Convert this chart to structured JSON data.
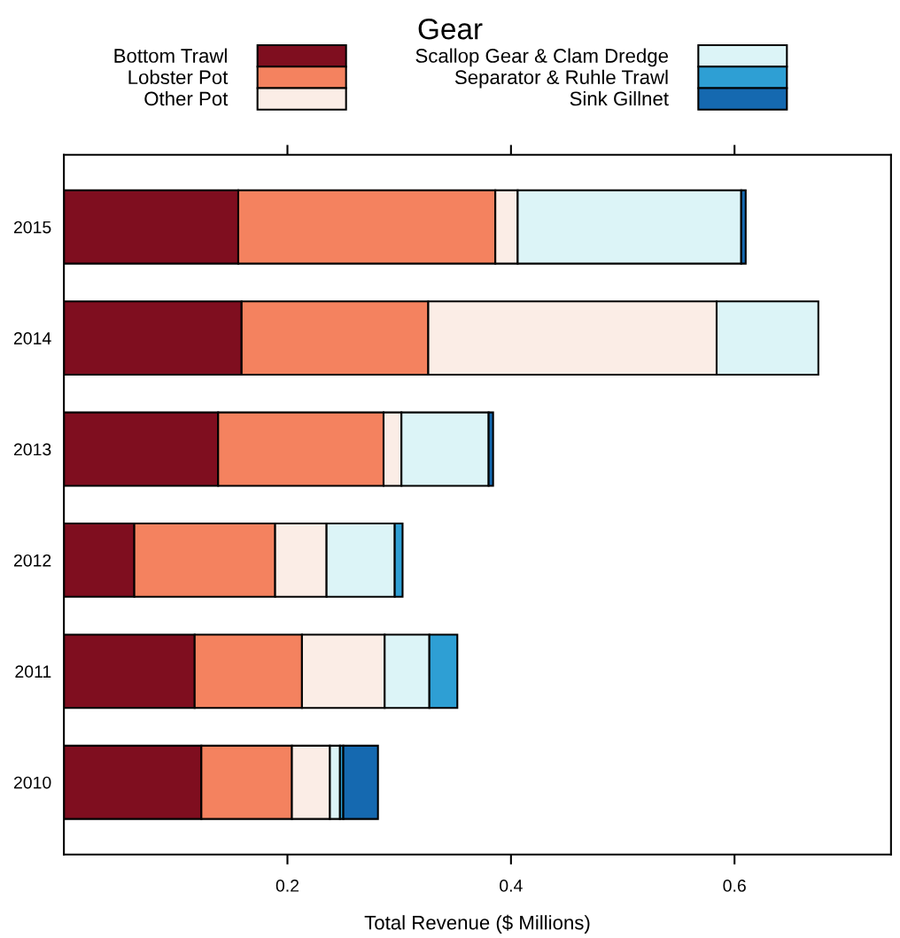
{
  "chart_data": {
    "type": "bar",
    "orientation": "horizontal",
    "stacked": true,
    "xlabel": "Total Revenue ($ Millions)",
    "legend_title": "Gear",
    "legend": "top",
    "categories": [
      "2015",
      "2014",
      "2013",
      "2012",
      "2011",
      "2010"
    ],
    "series": [
      {
        "name": "Bottom Trawl",
        "color": "#7f0e1f",
        "values": [
          0.156,
          0.159,
          0.138,
          0.063,
          0.117,
          0.123
        ]
      },
      {
        "name": "Lobster Pot",
        "color": "#f4825f",
        "values": [
          0.23,
          0.167,
          0.148,
          0.126,
          0.096,
          0.081
        ]
      },
      {
        "name": "Other Pot",
        "color": "#fbede6",
        "values": [
          0.02,
          0.258,
          0.016,
          0.046,
          0.074,
          0.034
        ]
      },
      {
        "name": "Scallop Gear & Clam Dredge",
        "color": "#dcf4f7",
        "values": [
          0.2,
          0.091,
          0.078,
          0.061,
          0.04,
          0.009
        ]
      },
      {
        "name": "Separator & Ruhle Trawl",
        "color": "#2e9fd4",
        "values": [
          null,
          null,
          null,
          0.007,
          0.025,
          0.003
        ]
      },
      {
        "name": "Sink Gillnet",
        "color": "#1569b0",
        "values": [
          0.004,
          null,
          0.004,
          null,
          null,
          0.031
        ]
      }
    ],
    "xlim": [
      0,
      0.74
    ],
    "xticks": [
      0.2,
      0.4,
      0.6
    ],
    "grid": false
  }
}
